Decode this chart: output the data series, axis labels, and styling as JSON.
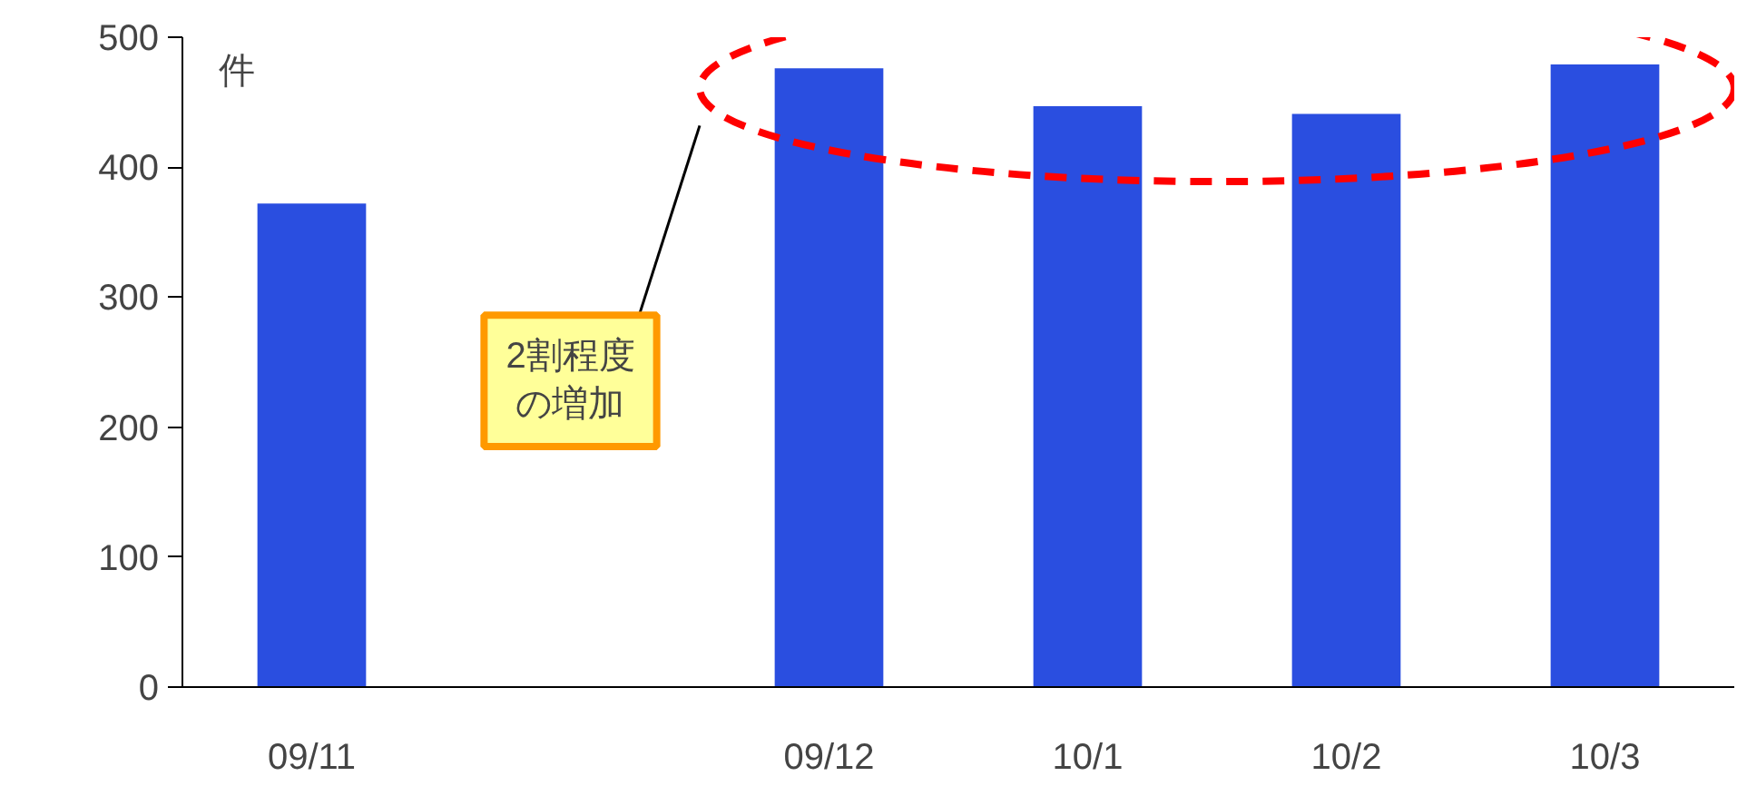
{
  "chart_data": {
    "type": "bar",
    "ylabel": "件",
    "categories": [
      "09/11",
      null,
      "09/12",
      "10/1",
      "10/2",
      "10/3"
    ],
    "values": [
      372,
      null,
      476,
      447,
      441,
      479
    ],
    "color": "#2a4ee0",
    "ylim": [
      0,
      500
    ],
    "yticks": [
      0,
      100,
      200,
      300,
      400,
      500
    ],
    "annotations": [
      "2割程度",
      "の増加"
    ]
  }
}
